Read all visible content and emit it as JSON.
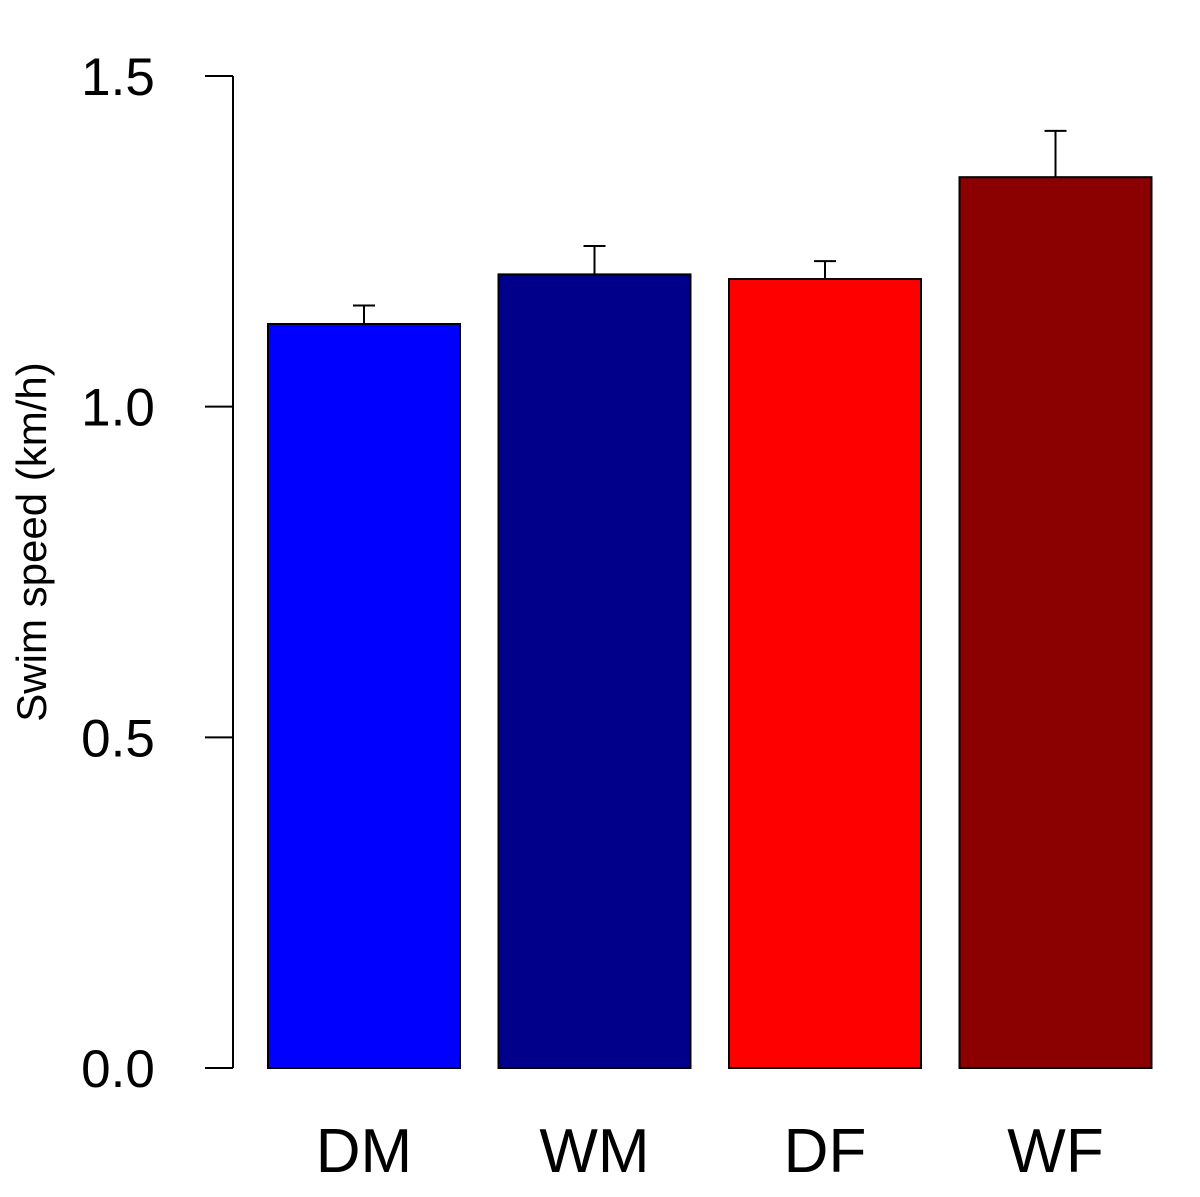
{
  "chart_data": {
    "type": "bar",
    "title": "",
    "xlabel": "",
    "ylabel": "Swim speed (km/h)",
    "categories": [
      "DM",
      "WM",
      "DF",
      "WF"
    ],
    "values": [
      1.125,
      1.2,
      1.193,
      1.347
    ],
    "errors": [
      0.028,
      0.043,
      0.027,
      0.07
    ],
    "colors": [
      "#0000ff",
      "#00008b",
      "#ff0000",
      "#8b0000"
    ],
    "ylim": [
      0,
      1.5
    ],
    "yticks": [
      "0.0",
      "0.5",
      "1.0",
      "1.5"
    ],
    "grid": false
  }
}
